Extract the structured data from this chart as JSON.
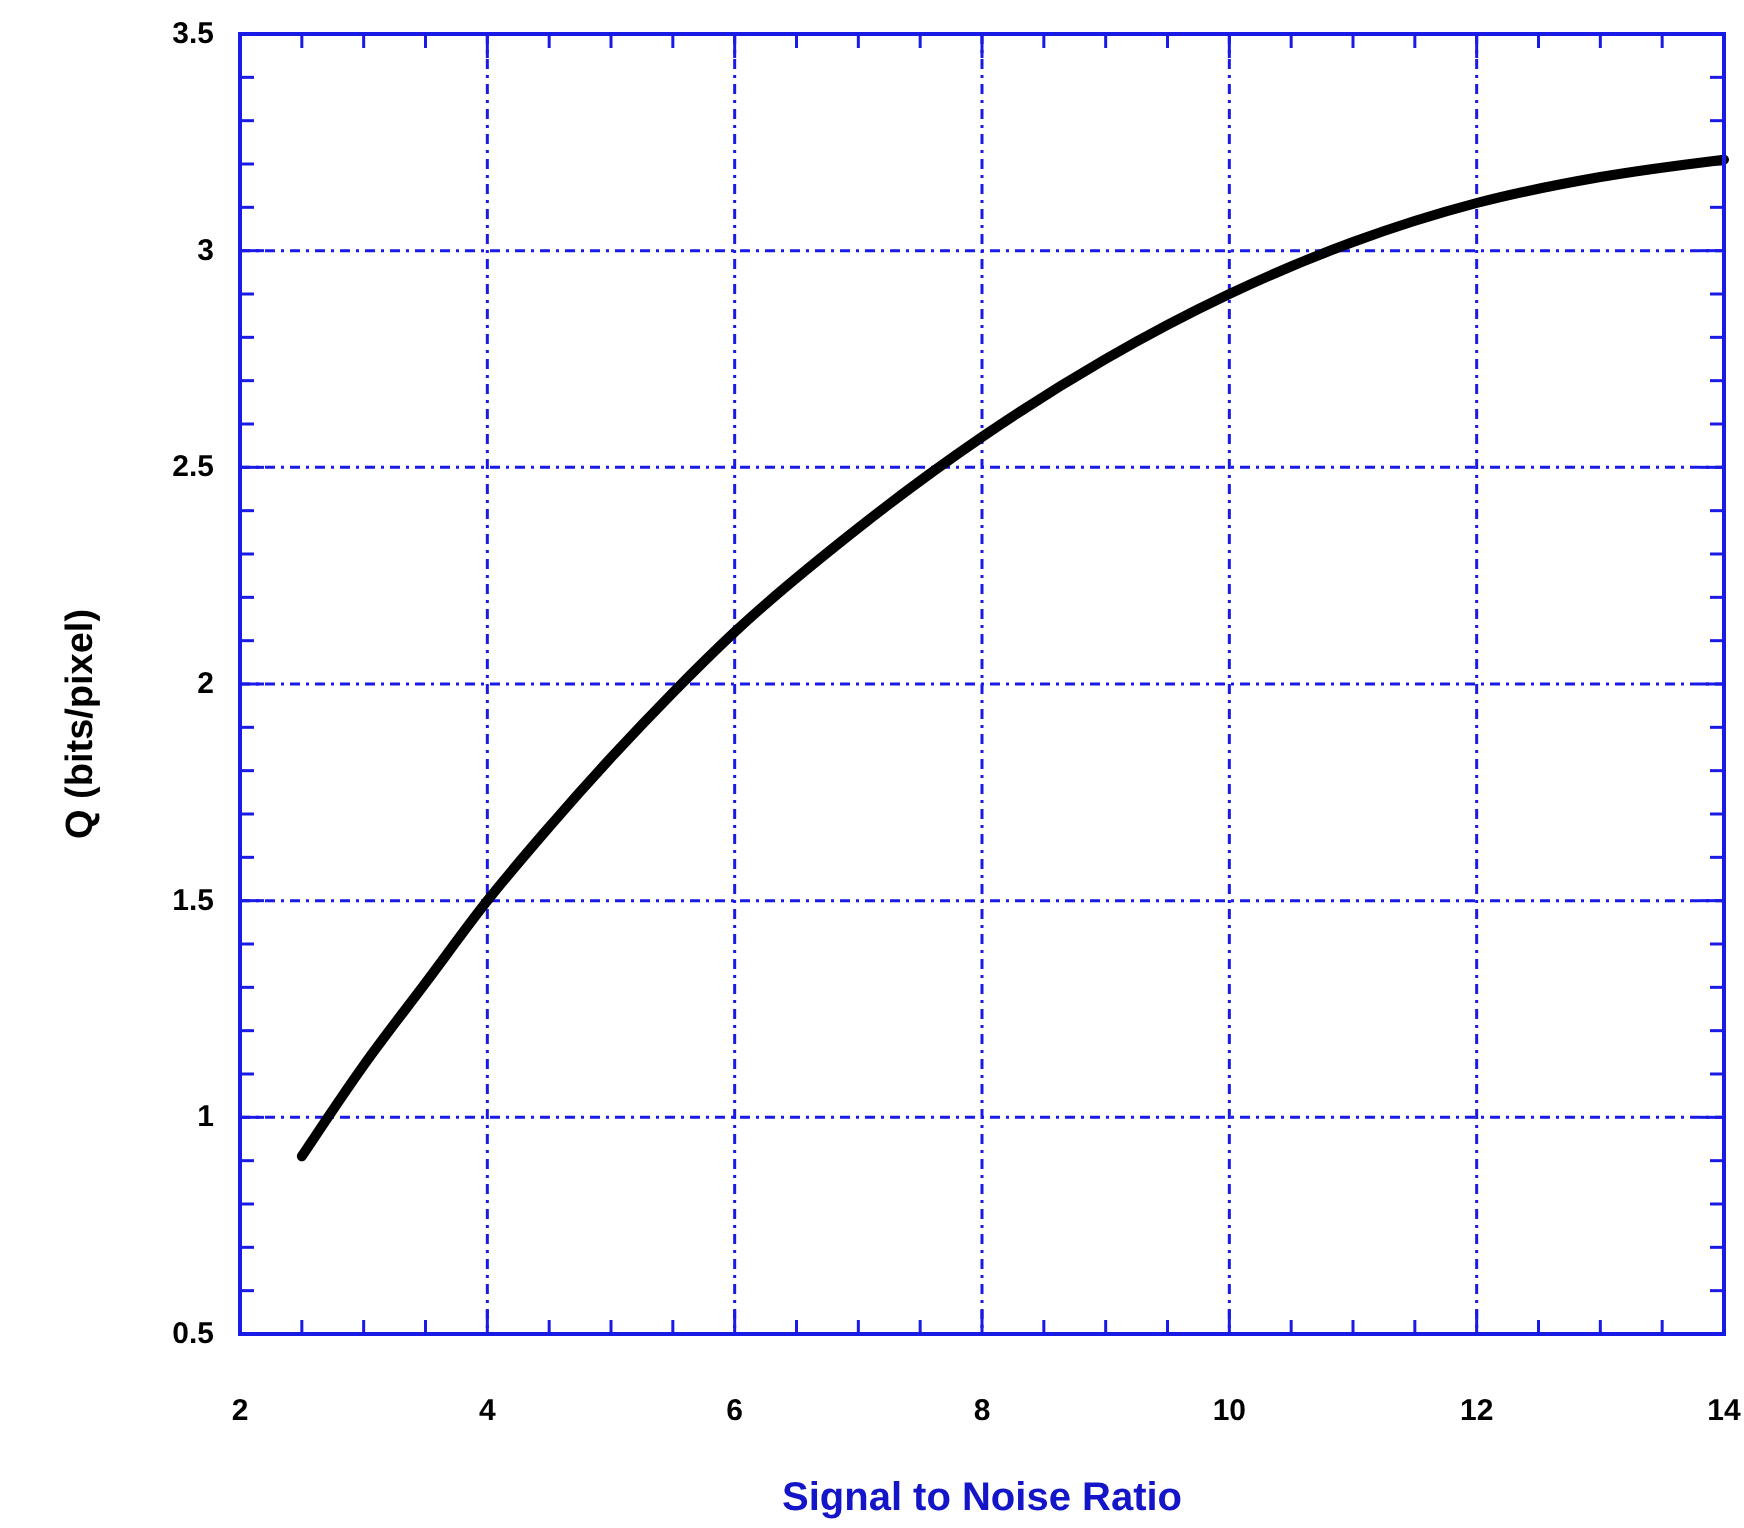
{
  "chart_data": {
    "type": "line",
    "xlabel": "Signal to Noise Ratio",
    "ylabel": "Q (bits/pixel)",
    "x": [
      2.5,
      3,
      3.5,
      4,
      4.5,
      5,
      5.5,
      6,
      7,
      8,
      9,
      10,
      11,
      12,
      13,
      14
    ],
    "series": [
      {
        "color": "#000000",
        "values": [
          0.91,
          1.12,
          1.31,
          1.5,
          1.67,
          1.83,
          1.98,
          2.12,
          2.36,
          2.57,
          2.75,
          2.9,
          3.02,
          3.11,
          3.17,
          3.21
        ]
      }
    ],
    "xlim": [
      2,
      14
    ],
    "ylim": [
      0.5,
      3.5
    ],
    "xticks": [
      2,
      {
        "value": 2.5,
        "label": null
      },
      {
        "value": 3,
        "label": null
      },
      {
        "value": 3.5,
        "label": null
      },
      4,
      {
        "value": 4.5,
        "label": null
      },
      {
        "value": 5,
        "label": null
      },
      {
        "value": 5.5,
        "label": null
      },
      6,
      {
        "value": 6.5,
        "label": null
      },
      {
        "value": 7,
        "label": null
      },
      {
        "value": 7.5,
        "label": null
      },
      8,
      {
        "value": 8.5,
        "label": null
      },
      {
        "value": 9,
        "label": null
      },
      {
        "value": 9.5,
        "label": null
      },
      10,
      {
        "value": 10.5,
        "label": null
      },
      {
        "value": 11,
        "label": null
      },
      {
        "value": 11.5,
        "label": null
      },
      12,
      {
        "value": 12.5,
        "label": null
      },
      {
        "value": 13,
        "label": null
      },
      {
        "value": 13.5,
        "label": null
      },
      14
    ],
    "yticks": [
      0.5,
      {
        "value": 0.6,
        "label": null
      },
      {
        "value": 0.7,
        "label": null
      },
      {
        "value": 0.8,
        "label": null
      },
      {
        "value": 0.9,
        "label": null
      },
      1,
      {
        "value": 1.1,
        "label": null
      },
      {
        "value": 1.2,
        "label": null
      },
      {
        "value": 1.3,
        "label": null
      },
      {
        "value": 1.4,
        "label": null
      },
      1.5,
      {
        "value": 1.6,
        "label": null
      },
      {
        "value": 1.7,
        "label": null
      },
      {
        "value": 1.8,
        "label": null
      },
      {
        "value": 1.9,
        "label": null
      },
      2,
      {
        "value": 2.1,
        "label": null
      },
      {
        "value": 2.2,
        "label": null
      },
      {
        "value": 2.3,
        "label": null
      },
      {
        "value": 2.4,
        "label": null
      },
      2.5,
      {
        "value": 2.6,
        "label": null
      },
      {
        "value": 2.7,
        "label": null
      },
      {
        "value": 2.8,
        "label": null
      },
      {
        "value": 2.9,
        "label": null
      },
      3,
      {
        "value": 3.1,
        "label": null
      },
      {
        "value": 3.2,
        "label": null
      },
      {
        "value": 3.3,
        "label": null
      },
      {
        "value": 3.4,
        "label": null
      },
      3.5
    ],
    "grid": true,
    "line_style": "solid"
  }
}
